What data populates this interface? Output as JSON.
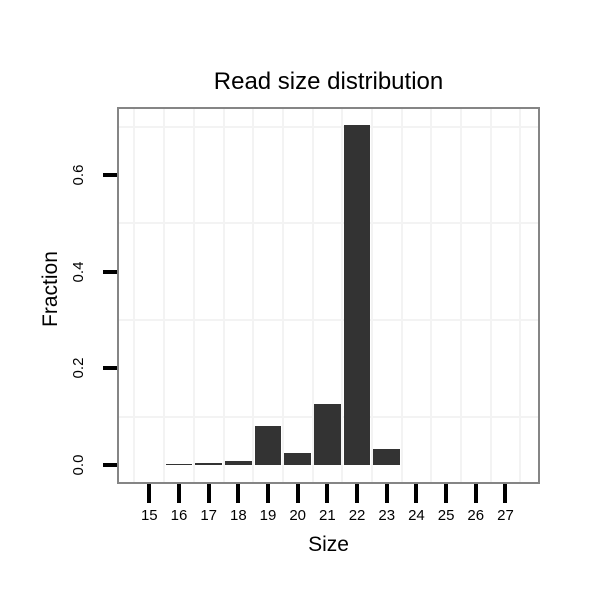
{
  "chart_data": {
    "type": "bar",
    "title": "Read size distribution",
    "xlabel": "Size",
    "ylabel": "Fraction",
    "categories": [
      "15",
      "16",
      "17",
      "18",
      "19",
      "20",
      "21",
      "22",
      "23",
      "24",
      "25",
      "26",
      "27"
    ],
    "values": [
      0,
      0.003,
      0.005,
      0.009,
      0.081,
      0.025,
      0.126,
      0.704,
      0.034,
      0,
      0,
      0,
      0
    ],
    "x_numeric": [
      15,
      16,
      17,
      18,
      19,
      20,
      21,
      22,
      23,
      24,
      25,
      26,
      27
    ],
    "yticks": [
      {
        "value": 0.0,
        "label": "0.0"
      },
      {
        "value": 0.2,
        "label": "0.2"
      },
      {
        "value": 0.4,
        "label": "0.4"
      },
      {
        "value": 0.6,
        "label": "0.6"
      }
    ],
    "ylim": [
      -0.037,
      0.739
    ],
    "xlim": [
      13.9,
      28.1
    ],
    "bar_width_units": 0.9,
    "grid": "minor-only",
    "minor_grid_y": [
      0.1,
      0.3,
      0.5,
      0.7
    ],
    "legend": "none",
    "colors": {
      "bar": "#333333",
      "panel_border": "#858585",
      "panel_background": "#ffffff",
      "figure_background": "#ffffff",
      "gridline": "#f3f3f3",
      "tick": "#000000",
      "text": "#000000"
    }
  }
}
